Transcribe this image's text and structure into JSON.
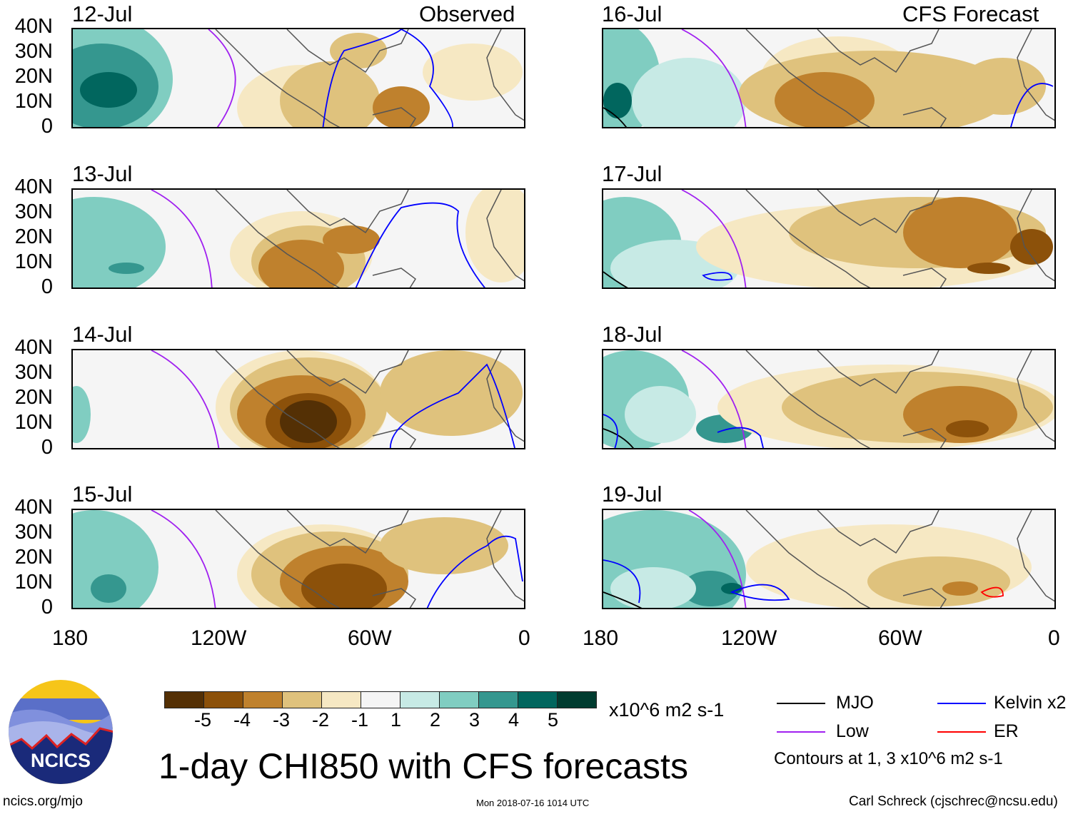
{
  "title": "1-day CHI850 with CFS forecasts",
  "observed_label": "Observed",
  "forecast_label": "CFS Forecast",
  "panels_left": [
    "12-Jul",
    "13-Jul",
    "14-Jul",
    "15-Jul"
  ],
  "panels_right": [
    "16-Jul",
    "17-Jul",
    "18-Jul",
    "19-Jul"
  ],
  "lat_labels": [
    "40N",
    "30N",
    "20N",
    "10N",
    "0"
  ],
  "lon_labels": [
    "180",
    "120W",
    "60W",
    "0"
  ],
  "colorbar": {
    "labels": [
      "-5",
      "-4",
      "-3",
      "-2",
      "-1",
      "1",
      "2",
      "3",
      "4",
      "5"
    ],
    "colors": [
      "#543005",
      "#8c510a",
      "#bf812d",
      "#dfc27d",
      "#f6e8c3",
      "#f5f5f5",
      "#c7eae5",
      "#80cdc1",
      "#35978f",
      "#01665e",
      "#003c30"
    ],
    "units": "x10^6 m2 s-1"
  },
  "legend": {
    "items": [
      {
        "label": "MJO",
        "color": "#000000"
      },
      {
        "label": "Kelvin x2",
        "color": "#0000ff"
      },
      {
        "label": "Low",
        "color": "#a020f0"
      },
      {
        "label": "ER",
        "color": "#ff0000"
      }
    ],
    "note": "Contours at 1, 3 x10^6 m2 s-1"
  },
  "logo_text": "NCICS",
  "footer": {
    "url": "ncics.org/mjo",
    "timestamp": "Mon 2018-07-16 1014 UTC",
    "author": "Carl Schreck (cjschrec@ncsu.edu)"
  }
}
